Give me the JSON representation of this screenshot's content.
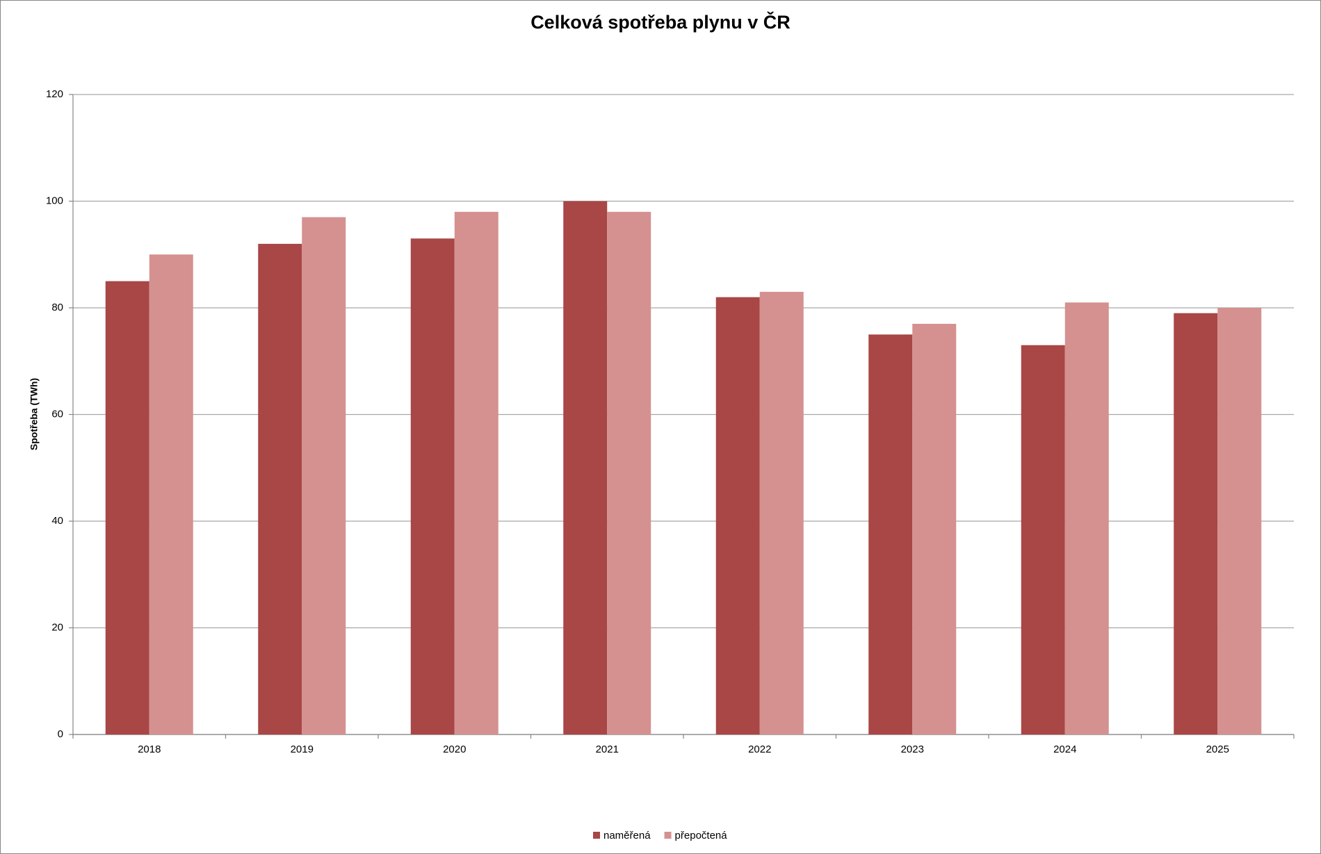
{
  "chart_data": {
    "type": "bar",
    "title": "Celková spotřeba plynu v ČR",
    "y_label": "Spotřeba (TWh)",
    "categories": [
      "2018",
      "2019",
      "2020",
      "2021",
      "2022",
      "2023",
      "2024",
      "2025"
    ],
    "series": [
      {
        "name": "naměřená",
        "color": "#a94646",
        "values": [
          85,
          92,
          93,
          100,
          82,
          75,
          73,
          79
        ]
      },
      {
        "name": "přepočtená",
        "color": "#d49190",
        "values": [
          90,
          97,
          98,
          98,
          83,
          77,
          81,
          80
        ]
      }
    ],
    "ylim": [
      0,
      120
    ],
    "yticks": [
      0,
      20,
      40,
      60,
      80,
      100,
      120
    ],
    "grid": true,
    "legend": "bottom"
  }
}
